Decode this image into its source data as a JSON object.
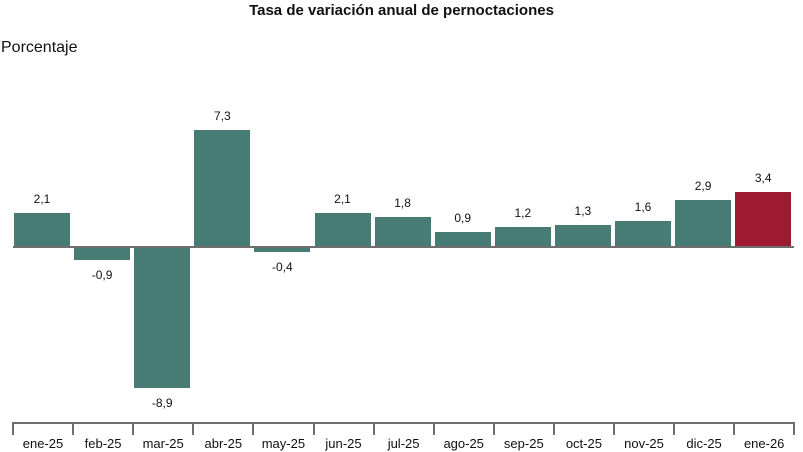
{
  "chart_data": {
    "type": "bar",
    "title": "Tasa de variación anual de pernoctaciones",
    "ylabel": "Porcentaje",
    "xlabel": "",
    "categories": [
      "ene-25",
      "feb-25",
      "mar-25",
      "abr-25",
      "may-25",
      "jun-25",
      "jul-25",
      "ago-25",
      "sep-25",
      "oct-25",
      "nov-25",
      "dic-25",
      "ene-26"
    ],
    "values": [
      2.1,
      -0.9,
      -8.9,
      7.3,
      -0.4,
      2.1,
      1.8,
      0.9,
      1.2,
      1.3,
      1.6,
      2.9,
      3.4
    ],
    "value_labels": [
      "2,1",
      "-0,9",
      "-8,9",
      "7,3",
      "-0,4",
      "2,1",
      "1,8",
      "0,9",
      "1,2",
      "1,3",
      "1,6",
      "2,9",
      "3,4"
    ],
    "colors": {
      "default": "#467c73",
      "highlight": "#9e1a30"
    },
    "highlight_index": 12,
    "grid": false,
    "legend": "none"
  }
}
